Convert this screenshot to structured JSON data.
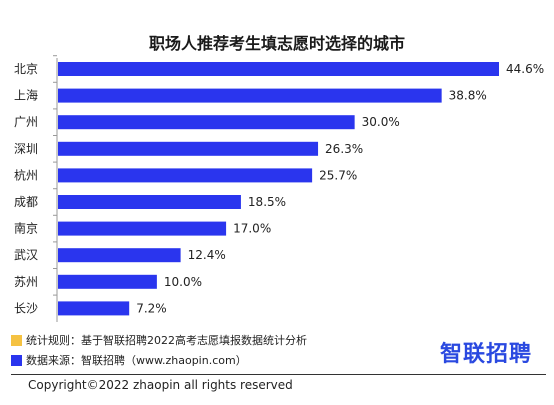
{
  "chart_data": {
    "type": "bar",
    "orientation": "horizontal",
    "title": "职场人推荐考生填志愿时选择的城市",
    "categories": [
      "北京",
      "上海",
      "广州",
      "深圳",
      "杭州",
      "成都",
      "南京",
      "武汉",
      "苏州",
      "长沙"
    ],
    "values": [
      44.6,
      38.8,
      30.0,
      26.3,
      25.7,
      18.5,
      17.0,
      12.4,
      10.0,
      7.2
    ],
    "value_labels": [
      "44.6%",
      "38.8%",
      "30.0%",
      "26.3%",
      "25.7%",
      "18.5%",
      "17.0%",
      "12.4%",
      "10.0%",
      "7.2%"
    ],
    "xlim": [
      0,
      44.6
    ],
    "bar_color": "#2a35ee",
    "grid": false
  },
  "footer": {
    "rule_note": "统计规则：基于智联招聘2022高考志愿填报数据统计分析",
    "rule_color": "#f5c242",
    "source_note": "数据来源：智联招聘（www.zhaopin.com）",
    "source_color": "#2a35ee",
    "brand": "智联招聘",
    "copyright": "Copyright©2022 zhaopin all rights reserved"
  }
}
